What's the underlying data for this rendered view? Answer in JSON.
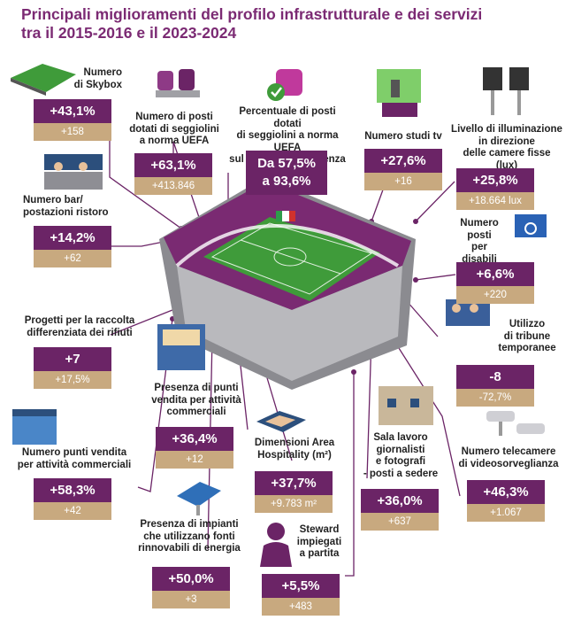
{
  "title": {
    "line1": "Principali miglioramenti del profilo infrastrutturale e dei servizi",
    "line2": "tra il 2015-2016 e il 2023-2024"
  },
  "colors": {
    "primary": "#6b2466",
    "secondary": "#c8a97f",
    "title": "#7b2a73",
    "pitch": "#3f9b3a"
  },
  "items": {
    "skybox": {
      "label": [
        "Numero",
        "di Skybox"
      ],
      "value": "+43,1%",
      "sub": "+158",
      "icon": "skybox-icon"
    },
    "bar": {
      "label": [
        "Numero bar/",
        "postazioni ristoro"
      ],
      "value": "+14,2%",
      "sub": "+62",
      "icon": "bar-icon"
    },
    "raccolta": {
      "label": [
        "Progetti per la raccolta",
        "differenziata dei rifiuti"
      ],
      "value": "+7",
      "sub": "+17,5%"
    },
    "vendita": {
      "label": [
        "Numero punti vendita",
        "per attività commerciali"
      ],
      "value": "+58,3%",
      "sub": "+42",
      "icon": "shop-icon"
    },
    "seggiolini": {
      "label": [
        "Numero di posti",
        "dotati di seggiolini",
        "a norma UEFA"
      ],
      "value": "+63,1%",
      "sub": "+413.846",
      "icon": "seats-icon"
    },
    "percentuale": {
      "label": [
        "Percentuale di posti dotati",
        "di seggiolini a norma UEFA",
        "sul totale della capienza"
      ],
      "value": [
        "Da 57,5%",
        "a 93,6%"
      ],
      "icon": "uefa-seat-icon"
    },
    "studi": {
      "label": [
        "Numero studi tv"
      ],
      "value": "+27,6%",
      "sub": "+16",
      "icon": "tv-studio-icon"
    },
    "illuminazione": {
      "label": [
        "Livello di illuminazione",
        "in direzione",
        "delle camere fisse (lux)"
      ],
      "value": "+25,8%",
      "sub": "+18.664 lux",
      "icon": "floodlight-icon"
    },
    "disabili": {
      "label": [
        "Numero",
        "posti",
        "per disabili"
      ],
      "value": "+6,6%",
      "sub": "+220",
      "icon": "wheelchair-icon"
    },
    "tribune": {
      "label": [
        "Utilizzo",
        "di tribune",
        "temporanee"
      ],
      "value": "-8",
      "sub": "-72,7%",
      "icon": "tribune-icon"
    },
    "telecamere": {
      "label": [
        "Numero telecamere",
        "di videosorveglianza"
      ],
      "value": "+46,3%",
      "sub": "+1.067",
      "icon": "cctv-icon"
    },
    "presenza": {
      "label": [
        "Presenza di punti",
        "vendita per attività",
        "commerciali"
      ],
      "value": "+36,4%",
      "sub": "+12",
      "icon": "kiosk-icon"
    },
    "hospitality": {
      "label": [
        "Dimensioni Area",
        "Hospitality (m²)"
      ],
      "value": "+37,7%",
      "sub": "+9.783 m²",
      "icon": "hospitality-icon"
    },
    "sala": {
      "label": [
        "Sala lavoro",
        "giornalisti",
        "e fotografi",
        "- posti a sedere"
      ],
      "value": "+36,0%",
      "sub": "+637",
      "icon": "pressroom-icon"
    },
    "rinnovabili": {
      "label": [
        "Presenza di impianti",
        "che utilizzano fonti",
        "rinnovabili di energia"
      ],
      "value": "+50,0%",
      "sub": "+3",
      "icon": "solar-panel-icon"
    },
    "steward": {
      "label": [
        "Steward",
        "impiegati",
        "a partita"
      ],
      "value": "+5,5%",
      "sub": "+483",
      "icon": "steward-icon"
    }
  }
}
